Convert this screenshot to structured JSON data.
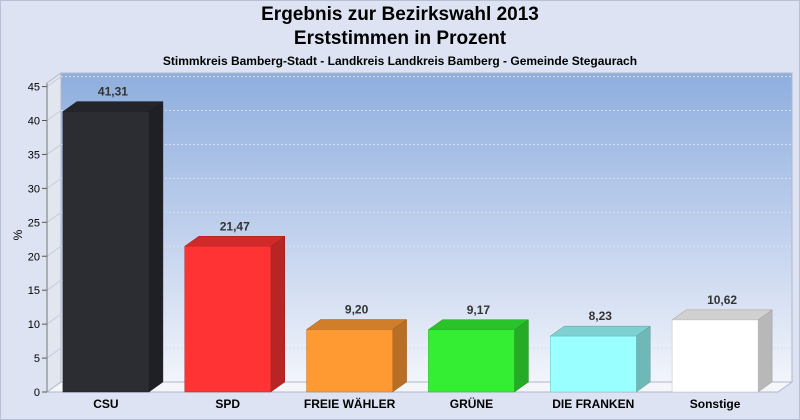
{
  "header": {
    "title": "Ergebnis zur Bezirkswahl 2013",
    "subtitle": "Erststimmen in Prozent",
    "caption": "Stimmkreis Bamberg-Stadt - Landkreis Landkreis Bamberg - Gemeinde Stegaurach"
  },
  "chart_data": {
    "type": "bar",
    "title": "Ergebnis zur Bezirkswahl 2013",
    "subtitle": "Erststimmen in Prozent",
    "ylabel": "%",
    "xlabel": "",
    "ylim": [
      0,
      47
    ],
    "yticks": [
      0,
      5,
      10,
      15,
      20,
      25,
      30,
      35,
      40,
      45
    ],
    "categories": [
      "CSU",
      "SPD",
      "FREIE WÄHLER",
      "GRÜNE",
      "DIE FRANKEN",
      "Sonstige"
    ],
    "values": [
      41.31,
      21.47,
      9.2,
      9.17,
      8.23,
      10.62
    ],
    "value_labels": [
      "41,31",
      "21,47",
      "9,20",
      "9,17",
      "8,23",
      "10,62"
    ],
    "colors": [
      "#2b2d33",
      "#ff3333",
      "#ff9a33",
      "#33ee33",
      "#99ffff",
      "#ffffff"
    ],
    "grid": true,
    "legend": "none"
  }
}
